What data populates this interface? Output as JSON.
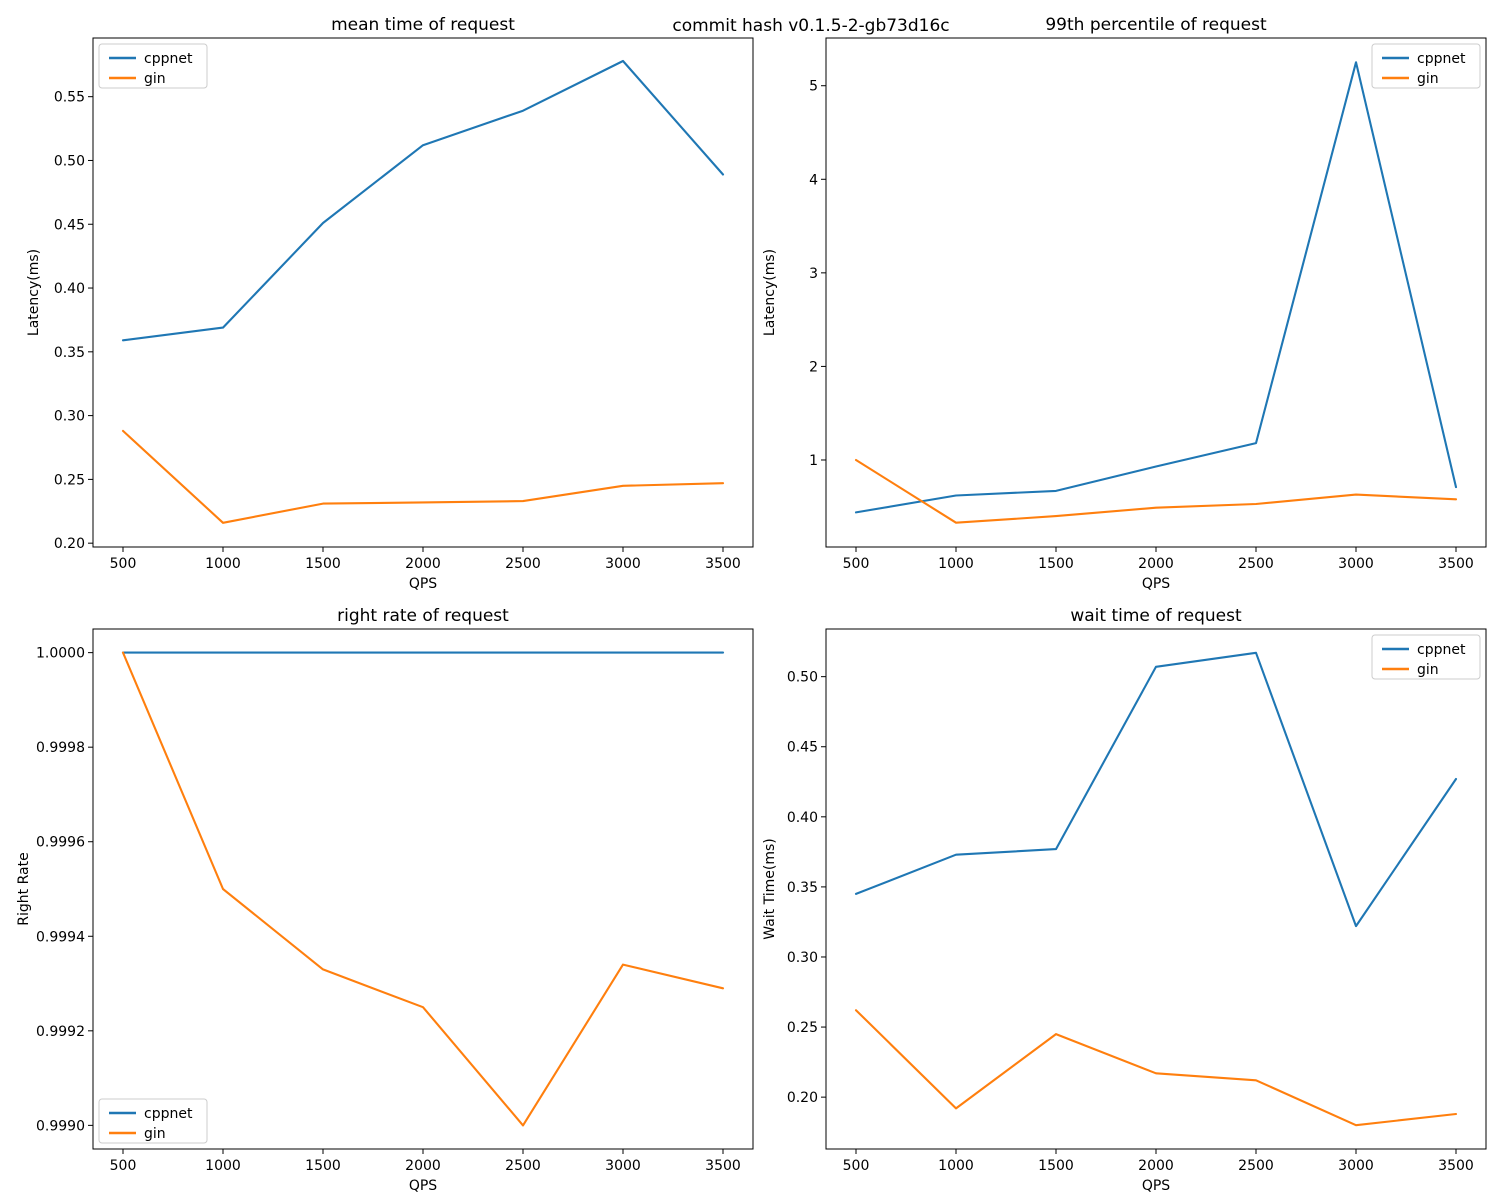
{
  "figure": {
    "suptitle": "commit hash v0.1.5-2-gb73d16c",
    "background": "#ffffff"
  },
  "colors": {
    "cppnet": "#1f77b4",
    "gin": "#ff7f0e",
    "spine": "#000000",
    "text": "#000000",
    "legend_edge": "#cccccc",
    "legend_face": "#ffffff"
  },
  "chart_data": [
    {
      "id": "mean-time",
      "type": "line",
      "title": "mean time of request",
      "xlabel": "QPS",
      "ylabel": "Latency(ms)",
      "grid": false,
      "x": [
        500,
        1000,
        1500,
        2000,
        2500,
        3000,
        3500
      ],
      "xlim": [
        350,
        3650
      ],
      "ylim": [
        0.197,
        0.596
      ],
      "xticks": [
        500,
        1000,
        1500,
        2000,
        2500,
        3000,
        3500
      ],
      "xtick_labels": [
        "500",
        "1000",
        "1500",
        "2000",
        "2500",
        "3000",
        "3500"
      ],
      "yticks": [
        0.2,
        0.25,
        0.3,
        0.35,
        0.4,
        0.45,
        0.5,
        0.55
      ],
      "ytick_labels": [
        "0.20",
        "0.25",
        "0.30",
        "0.35",
        "0.40",
        "0.45",
        "0.50",
        "0.55"
      ],
      "legend": {
        "position": "upper left",
        "entries": [
          "cppnet",
          "gin"
        ]
      },
      "series": [
        {
          "name": "cppnet",
          "color": "#1f77b4",
          "values": [
            0.359,
            0.369,
            0.451,
            0.512,
            0.539,
            0.578,
            0.489
          ]
        },
        {
          "name": "gin",
          "color": "#ff7f0e",
          "values": [
            0.288,
            0.216,
            0.231,
            0.232,
            0.233,
            0.245,
            0.247
          ]
        }
      ]
    },
    {
      "id": "99th-percentile",
      "type": "line",
      "title": "99th percentile of request",
      "xlabel": "QPS",
      "ylabel": "Latency(ms)",
      "grid": false,
      "x": [
        500,
        1000,
        1500,
        2000,
        2500,
        3000,
        3500
      ],
      "xlim": [
        350,
        3650
      ],
      "ylim": [
        0.07,
        5.51
      ],
      "xticks": [
        500,
        1000,
        1500,
        2000,
        2500,
        3000,
        3500
      ],
      "xtick_labels": [
        "500",
        "1000",
        "1500",
        "2000",
        "2500",
        "3000",
        "3500"
      ],
      "yticks": [
        1,
        2,
        3,
        4,
        5
      ],
      "ytick_labels": [
        "1",
        "2",
        "3",
        "4",
        "5"
      ],
      "legend": {
        "position": "upper right",
        "entries": [
          "cppnet",
          "gin"
        ]
      },
      "series": [
        {
          "name": "cppnet",
          "color": "#1f77b4",
          "values": [
            0.44,
            0.62,
            0.67,
            0.93,
            1.18,
            5.25,
            0.71
          ]
        },
        {
          "name": "gin",
          "color": "#ff7f0e",
          "values": [
            1.0,
            0.33,
            0.4,
            0.49,
            0.53,
            0.63,
            0.58
          ]
        }
      ]
    },
    {
      "id": "right-rate",
      "type": "line",
      "title": "right rate of request",
      "xlabel": "QPS",
      "ylabel": "Right Rate",
      "grid": false,
      "x": [
        500,
        1000,
        1500,
        2000,
        2500,
        3000,
        3500
      ],
      "xlim": [
        350,
        3650
      ],
      "ylim": [
        0.99895,
        1.00005
      ],
      "xticks": [
        500,
        1000,
        1500,
        2000,
        2500,
        3000,
        3500
      ],
      "xtick_labels": [
        "500",
        "1000",
        "1500",
        "2000",
        "2500",
        "3000",
        "3500"
      ],
      "yticks": [
        0.999,
        0.9992,
        0.9994,
        0.9996,
        0.9998,
        1.0
      ],
      "ytick_labels": [
        "0.9990",
        "0.9992",
        "0.9994",
        "0.9996",
        "0.9998",
        "1.0000"
      ],
      "legend": {
        "position": "lower left",
        "entries": [
          "cppnet",
          "gin"
        ]
      },
      "series": [
        {
          "name": "cppnet",
          "color": "#1f77b4",
          "values": [
            1.0,
            1.0,
            1.0,
            1.0,
            1.0,
            1.0,
            1.0
          ]
        },
        {
          "name": "gin",
          "color": "#ff7f0e",
          "values": [
            1.0,
            0.9995,
            0.99933,
            0.99925,
            0.999,
            0.99934,
            0.99929
          ]
        }
      ]
    },
    {
      "id": "wait-time",
      "type": "line",
      "title": "wait time of request",
      "xlabel": "QPS",
      "ylabel": "Wait Time(ms)",
      "grid": false,
      "x": [
        500,
        1000,
        1500,
        2000,
        2500,
        3000,
        3500
      ],
      "xlim": [
        350,
        3650
      ],
      "ylim": [
        0.163,
        0.534
      ],
      "xticks": [
        500,
        1000,
        1500,
        2000,
        2500,
        3000,
        3500
      ],
      "xtick_labels": [
        "500",
        "1000",
        "1500",
        "2000",
        "2500",
        "3000",
        "3500"
      ],
      "yticks": [
        0.2,
        0.25,
        0.3,
        0.35,
        0.4,
        0.45,
        0.5
      ],
      "ytick_labels": [
        "0.20",
        "0.25",
        "0.30",
        "0.35",
        "0.40",
        "0.45",
        "0.50"
      ],
      "legend": {
        "position": "upper right",
        "entries": [
          "cppnet",
          "gin"
        ]
      },
      "series": [
        {
          "name": "cppnet",
          "color": "#1f77b4",
          "values": [
            0.345,
            0.373,
            0.377,
            0.507,
            0.517,
            0.322,
            0.427
          ]
        },
        {
          "name": "gin",
          "color": "#ff7f0e",
          "values": [
            0.262,
            0.192,
            0.245,
            0.217,
            0.212,
            0.18,
            0.188
          ]
        }
      ]
    }
  ]
}
